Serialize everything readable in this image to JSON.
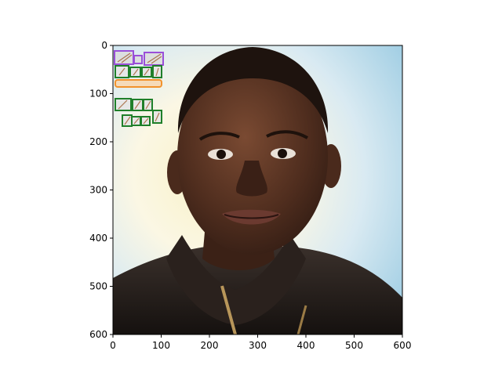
{
  "figure": {
    "x_ticks": [
      "0",
      "100",
      "200",
      "300",
      "400",
      "500",
      "600"
    ],
    "y_ticks": [
      "0",
      "100",
      "200",
      "300",
      "400",
      "500",
      "600"
    ],
    "x_range": [
      0,
      600
    ],
    "y_range": [
      0,
      600
    ],
    "y_inverted": true,
    "photo": "portrait-of-a-smiling-child-in-dark-jacket",
    "annotation_colors": {
      "purple": "#9a4fd8",
      "green": "#1f7f2a",
      "orange": "#f2922c"
    }
  }
}
